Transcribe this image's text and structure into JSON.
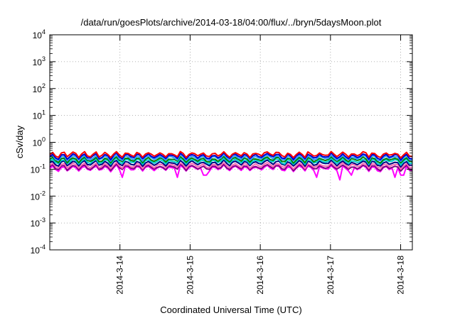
{
  "chart_data": {
    "type": "line",
    "title": "/data/run/goesPlots/archive/2014-03-18/04:00/flux/../bryn/5daysMoon.plot",
    "xlabel": "Coordinated Universal Time (UTC)",
    "ylabel": "cSv/day",
    "yscale": "log",
    "ylim": [
      0.0001,
      10000
    ],
    "y_ticks": [
      {
        "base": "10",
        "exp": "-4",
        "value": 0.0001
      },
      {
        "base": "10",
        "exp": "-3",
        "value": 0.001
      },
      {
        "base": "10",
        "exp": "-2",
        "value": 0.01
      },
      {
        "base": "10",
        "exp": "-1",
        "value": 0.1
      },
      {
        "base": "10",
        "exp": "0",
        "value": 1
      },
      {
        "base": "10",
        "exp": "1",
        "value": 10
      },
      {
        "base": "10",
        "exp": "2",
        "value": 100
      },
      {
        "base": "10",
        "exp": "3",
        "value": 1000
      },
      {
        "base": "10",
        "exp": "4",
        "value": 10000
      }
    ],
    "xlim": [
      "2014-03-13T00:00",
      "2014-03-18T04:00"
    ],
    "x_ticks": [
      "2014-3-14",
      "2014-3-15",
      "2014-3-16",
      "2014-3-17",
      "2014-3-18"
    ],
    "grid": true,
    "series": [
      {
        "color": "#ff00ff",
        "baseline": 0.11,
        "dips": [
          [
            "2014-03-14T01:00",
            0.05
          ],
          [
            "2014-03-14T20:00",
            0.05
          ],
          [
            "2014-03-15T05:00",
            0.06
          ],
          [
            "2014-03-16T19:30",
            0.05
          ],
          [
            "2014-03-17T03:00",
            0.04
          ],
          [
            "2014-03-17T07:00",
            0.06
          ],
          [
            "2014-03-17T22:00",
            0.05
          ],
          [
            "2014-03-18T00:30",
            0.06
          ]
        ]
      },
      {
        "color": "#800080",
        "baseline": 0.12
      },
      {
        "color": "#ff69b4",
        "baseline": 0.14
      },
      {
        "color": "#000080",
        "baseline": 0.17
      },
      {
        "color": "#00cccc",
        "baseline": 0.2
      },
      {
        "color": "#008000",
        "baseline": 0.23
      },
      {
        "color": "#3399ff",
        "baseline": 0.27
      },
      {
        "color": "#0000cd",
        "baseline": 0.31
      },
      {
        "color": "#ff0000",
        "baseline": 0.36
      }
    ]
  }
}
